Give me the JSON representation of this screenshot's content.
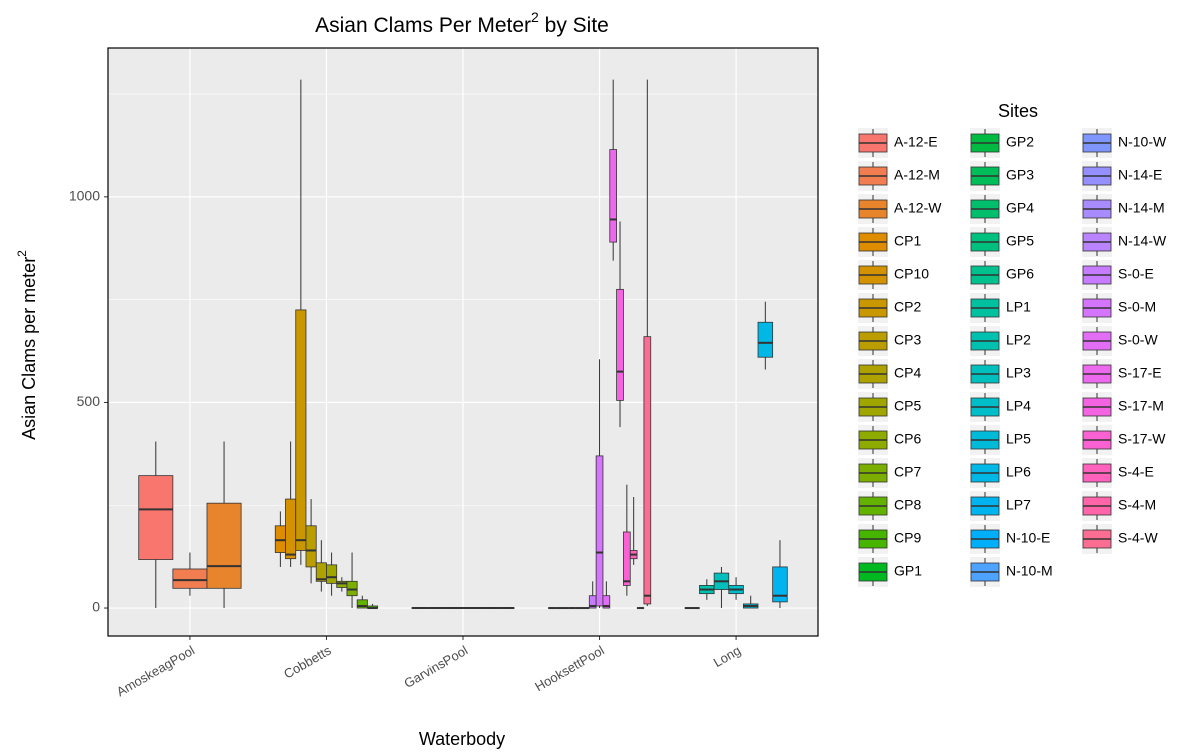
{
  "chart_data": {
    "type": "boxplot",
    "title": [
      "Asian Clams Per Meter",
      "2",
      " by Site"
    ],
    "x_label": "Waterbody",
    "y_label": [
      "Asian Clams per meter",
      "2"
    ],
    "legend_title": "Sites",
    "categories": [
      "AmoskeagPool",
      "Cobbetts",
      "GarvinsPool",
      "HooksettPool",
      "Long"
    ],
    "ylim": [
      -68,
      1362
    ],
    "yticks": [
      0,
      500,
      1000
    ],
    "minor_yticks": [
      250,
      750,
      1250
    ],
    "grid": true,
    "series": [
      {
        "name": "A-12-E",
        "color": "#F8766D",
        "waterbody": "AmoskeagPool",
        "min": 0,
        "q1": 118,
        "median": 240,
        "q3": 322,
        "max": 405
      },
      {
        "name": "A-12-M",
        "color": "#F17D51",
        "waterbody": "AmoskeagPool",
        "min": 30,
        "q1": 48,
        "median": 68,
        "q3": 95,
        "max": 135
      },
      {
        "name": "A-12-W",
        "color": "#E8852C",
        "waterbody": "AmoskeagPool",
        "min": 0,
        "q1": 48,
        "median": 102,
        "q3": 255,
        "max": 405
      },
      {
        "name": "CP1",
        "color": "#DE8C00",
        "waterbody": "Cobbetts",
        "min": 100,
        "q1": 135,
        "median": 165,
        "q3": 200,
        "max": 235
      },
      {
        "name": "CP10",
        "color": "#D49200",
        "waterbody": "Cobbetts",
        "min": 100,
        "q1": 120,
        "median": 130,
        "q3": 265,
        "max": 405
      },
      {
        "name": "CP2",
        "color": "#C99800",
        "waterbody": "Cobbetts",
        "min": 105,
        "q1": 140,
        "median": 165,
        "q3": 725,
        "max": 1285
      },
      {
        "name": "CP3",
        "color": "#BB9D00",
        "waterbody": "Cobbetts",
        "min": 60,
        "q1": 100,
        "median": 140,
        "q3": 200,
        "max": 265
      },
      {
        "name": "CP4",
        "color": "#AEA200",
        "waterbody": "Cobbetts",
        "min": 40,
        "q1": 65,
        "median": 70,
        "q3": 110,
        "max": 165
      },
      {
        "name": "CP5",
        "color": "#9FA600",
        "waterbody": "Cobbetts",
        "min": 30,
        "q1": 60,
        "median": 75,
        "q3": 105,
        "max": 135
      },
      {
        "name": "CP6",
        "color": "#8EAB00",
        "waterbody": "Cobbetts",
        "min": 40,
        "q1": 50,
        "median": 60,
        "q3": 65,
        "max": 75
      },
      {
        "name": "CP7",
        "color": "#7CAE00",
        "waterbody": "Cobbetts",
        "min": 0,
        "q1": 30,
        "median": 45,
        "q3": 65,
        "max": 135
      },
      {
        "name": "CP8",
        "color": "#64B200",
        "waterbody": "Cobbetts",
        "min": 0,
        "q1": 0,
        "median": 5,
        "q3": 20,
        "max": 30
      },
      {
        "name": "CP9",
        "color": "#45B500",
        "waterbody": "Cobbetts",
        "min": 0,
        "q1": 0,
        "median": 0,
        "q3": 5,
        "max": 10
      },
      {
        "name": "GP1",
        "color": "#00B81F",
        "waterbody": "GarvinsPool",
        "min": 0,
        "q1": 0,
        "median": 0,
        "q3": 0,
        "max": 0
      },
      {
        "name": "GP2",
        "color": "#00BA42",
        "waterbody": "GarvinsPool",
        "min": 0,
        "q1": 0,
        "median": 0,
        "q3": 0,
        "max": 0
      },
      {
        "name": "GP3",
        "color": "#00BC59",
        "waterbody": "GarvinsPool",
        "min": 0,
        "q1": 0,
        "median": 0,
        "q3": 0,
        "max": 0
      },
      {
        "name": "GP4",
        "color": "#00BE6C",
        "waterbody": "GarvinsPool",
        "min": 0,
        "q1": 0,
        "median": 0,
        "q3": 0,
        "max": 0
      },
      {
        "name": "GP5",
        "color": "#00C07E",
        "waterbody": "GarvinsPool",
        "min": 0,
        "q1": 0,
        "median": 0,
        "q3": 0,
        "max": 0
      },
      {
        "name": "GP6",
        "color": "#00C08E",
        "waterbody": "GarvinsPool",
        "min": 0,
        "q1": 0,
        "median": 0,
        "q3": 0,
        "max": 0
      },
      {
        "name": "LP1",
        "color": "#00C19F",
        "waterbody": "Long",
        "min": 0,
        "q1": 0,
        "median": 0,
        "q3": 0,
        "max": 0
      },
      {
        "name": "LP2",
        "color": "#00C0AF",
        "waterbody": "Long",
        "min": 20,
        "q1": 35,
        "median": 45,
        "q3": 55,
        "max": 70
      },
      {
        "name": "LP3",
        "color": "#00BFBD",
        "waterbody": "Long",
        "min": 0,
        "q1": 45,
        "median": 65,
        "q3": 85,
        "max": 100
      },
      {
        "name": "LP4",
        "color": "#00BDCA",
        "waterbody": "Long",
        "min": 20,
        "q1": 35,
        "median": 45,
        "q3": 55,
        "max": 75
      },
      {
        "name": "LP5",
        "color": "#00BBD8",
        "waterbody": "Long",
        "min": 0,
        "q1": 0,
        "median": 5,
        "q3": 10,
        "max": 30
      },
      {
        "name": "LP6",
        "color": "#00B8E5",
        "waterbody": "Long",
        "min": 580,
        "q1": 610,
        "median": 645,
        "q3": 695,
        "max": 745
      },
      {
        "name": "LP7",
        "color": "#00B4F0",
        "waterbody": "Long",
        "min": 0,
        "q1": 15,
        "median": 30,
        "q3": 100,
        "max": 165
      },
      {
        "name": "N-10-E",
        "color": "#00AEFA",
        "waterbody": "HooksettPool",
        "min": 0,
        "q1": 0,
        "median": 0,
        "q3": 0,
        "max": 0
      },
      {
        "name": "N-10-M",
        "color": "#4DA3FF",
        "waterbody": "HooksettPool",
        "min": 0,
        "q1": 0,
        "median": 0,
        "q3": 0,
        "max": 0
      },
      {
        "name": "N-10-W",
        "color": "#7F96FF",
        "waterbody": "HooksettPool",
        "min": 0,
        "q1": 0,
        "median": 0,
        "q3": 0,
        "max": 0
      },
      {
        "name": "N-14-E",
        "color": "#9590FF",
        "waterbody": "HooksettPool",
        "min": 0,
        "q1": 0,
        "median": 0,
        "q3": 0,
        "max": 0
      },
      {
        "name": "N-14-M",
        "color": "#A88BFF",
        "waterbody": "HooksettPool",
        "min": 0,
        "q1": 0,
        "median": 0,
        "q3": 0,
        "max": 0
      },
      {
        "name": "N-14-W",
        "color": "#BA83FF",
        "waterbody": "HooksettPool",
        "min": 0,
        "q1": 0,
        "median": 0,
        "q3": 0,
        "max": 0
      },
      {
        "name": "S-0-E",
        "color": "#C77CFF",
        "waterbody": "HooksettPool",
        "min": 0,
        "q1": 0,
        "median": 5,
        "q3": 30,
        "max": 65
      },
      {
        "name": "S-0-M",
        "color": "#D575FE",
        "waterbody": "HooksettPool",
        "min": 0,
        "q1": 5,
        "median": 135,
        "q3": 370,
        "max": 605
      },
      {
        "name": "S-0-W",
        "color": "#E36EF6",
        "waterbody": "HooksettPool",
        "min": 0,
        "q1": 0,
        "median": 5,
        "q3": 30,
        "max": 65
      },
      {
        "name": "S-17-E",
        "color": "#EC69EE",
        "waterbody": "HooksettPool",
        "min": 845,
        "q1": 890,
        "median": 945,
        "q3": 1115,
        "max": 1285
      },
      {
        "name": "S-17-M",
        "color": "#F464E2",
        "waterbody": "HooksettPool",
        "min": 440,
        "q1": 505,
        "median": 575,
        "q3": 775,
        "max": 940
      },
      {
        "name": "S-17-W",
        "color": "#FA62D4",
        "waterbody": "HooksettPool",
        "min": 30,
        "q1": 55,
        "median": 65,
        "q3": 185,
        "max": 300
      },
      {
        "name": "S-4-E",
        "color": "#FF62BC",
        "waterbody": "HooksettPool",
        "min": 105,
        "q1": 120,
        "median": 130,
        "q3": 140,
        "max": 270
      },
      {
        "name": "S-4-M",
        "color": "#FF65A8",
        "waterbody": "HooksettPool",
        "min": 0,
        "q1": 0,
        "median": 0,
        "q3": 0,
        "max": 0
      },
      {
        "name": "S-4-W",
        "color": "#FC6D93",
        "waterbody": "HooksettPool",
        "min": 5,
        "q1": 10,
        "median": 30,
        "q3": 660,
        "max": 1285
      }
    ]
  }
}
